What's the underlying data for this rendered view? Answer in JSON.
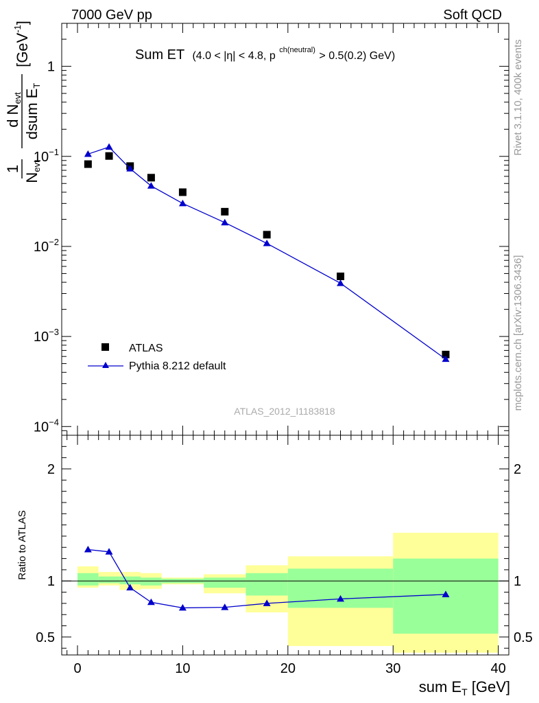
{
  "header": {
    "left_label": "7000 GeV pp",
    "right_label": "Soft QCD"
  },
  "side_labels": {
    "top": "Rivet 3.1.10,  400k events",
    "bottom": "mcplots.cern.ch [arXiv:1306.3436]"
  },
  "watermark": "ATLAS_2012_I1183818",
  "chart_data": [
    {
      "type": "scatter",
      "panel": "main",
      "title": "Sum ET",
      "title_cuts": "(4.0 < |η| < 4.8, p",
      "title_cuts_sup": "ch(neutral)",
      "title_cuts_end": " > 0.5(0.2) GeV)",
      "ylabel": {
        "prefix": "1",
        "n": "N",
        "n_sub": "evt",
        "dn": "d N",
        "dn_sub": "evt",
        "dsum": "dsum E",
        "dsum_sub": "T",
        "units": "[GeV",
        "units_sup": "-1",
        "units_end": "]"
      },
      "yscale": "log",
      "ylim": [
        8e-05,
        3.0
      ],
      "xlim": [
        -1.5,
        41
      ],
      "ytick_labels": [
        {
          "value": 1,
          "base": "1",
          "exp": ""
        },
        {
          "value": 0.1,
          "base": "10",
          "exp": "−1"
        },
        {
          "value": 0.01,
          "base": "10",
          "exp": "−2"
        },
        {
          "value": 0.001,
          "base": "10",
          "exp": "−3"
        },
        {
          "value": 0.0001,
          "base": "10",
          "exp": "−4"
        }
      ],
      "legend": {
        "placement": "bottom-left",
        "entries": [
          "ATLAS",
          "Pythia 8.212 default"
        ]
      },
      "series": [
        {
          "name": "ATLAS",
          "marker": "square",
          "color": "#000000",
          "x": [
            1,
            3,
            5,
            7,
            10,
            14,
            18,
            25,
            35
          ],
          "y": [
            0.082,
            0.101,
            0.078,
            0.058,
            0.04,
            0.0243,
            0.0135,
            0.00465,
            0.00063
          ]
        },
        {
          "name": "Pythia 8.212 default",
          "marker": "triangle",
          "color": "#0000cc",
          "x": [
            1,
            3,
            5,
            7,
            10,
            14,
            18,
            25,
            35
          ],
          "y": [
            0.106,
            0.127,
            0.073,
            0.047,
            0.03,
            0.0184,
            0.0108,
            0.0039,
            0.00056
          ]
        }
      ]
    },
    {
      "type": "line",
      "panel": "ratio",
      "ylabel": "Ratio to ATLAS",
      "xlabel": "sum E",
      "xlabel_sub": "T",
      "xlabel_units": " [GeV]",
      "ylim": [
        0.34,
        2.3
      ],
      "xlim": [
        -1.5,
        41
      ],
      "xticks": [
        0,
        10,
        20,
        30,
        40
      ],
      "ytick_labels": [
        {
          "value": 2,
          "label": "2"
        },
        {
          "value": 1,
          "label": "1"
        },
        {
          "value": 0.5,
          "label": "0.5"
        }
      ],
      "reference": 1.0,
      "bands": [
        {
          "x0": 0,
          "x1": 2,
          "yellow": [
            0.94,
            1.13
          ],
          "green": [
            0.96,
            1.07
          ]
        },
        {
          "x0": 2,
          "x1": 4,
          "yellow": [
            0.96,
            1.08
          ],
          "green": [
            0.98,
            1.04
          ]
        },
        {
          "x0": 4,
          "x1": 6,
          "yellow": [
            0.92,
            1.08
          ],
          "green": [
            0.97,
            1.04
          ]
        },
        {
          "x0": 6,
          "x1": 8,
          "yellow": [
            0.93,
            1.07
          ],
          "green": [
            0.96,
            1.03
          ]
        },
        {
          "x0": 8,
          "x1": 12,
          "yellow": [
            0.97,
            1.03
          ],
          "green": [
            0.98,
            1.02
          ]
        },
        {
          "x0": 12,
          "x1": 16,
          "yellow": [
            0.89,
            1.06
          ],
          "green": [
            0.94,
            1.03
          ]
        },
        {
          "x0": 16,
          "x1": 20,
          "yellow": [
            0.72,
            1.14
          ],
          "green": [
            0.87,
            1.07
          ]
        },
        {
          "x0": 20,
          "x1": 30,
          "yellow": [
            0.42,
            1.22
          ],
          "green": [
            0.76,
            1.11
          ]
        },
        {
          "x0": 30,
          "x1": 40,
          "yellow": [
            0.36,
            1.43
          ],
          "green": [
            0.53,
            1.2
          ]
        }
      ],
      "series": [
        {
          "name": "Pythia 8.212 default",
          "marker": "triangle",
          "color": "#0000cc",
          "x": [
            1,
            3,
            5,
            7,
            10,
            14,
            18,
            25,
            35
          ],
          "y": [
            1.28,
            1.26,
            0.94,
            0.81,
            0.76,
            0.765,
            0.8,
            0.84,
            0.88
          ]
        }
      ]
    }
  ]
}
